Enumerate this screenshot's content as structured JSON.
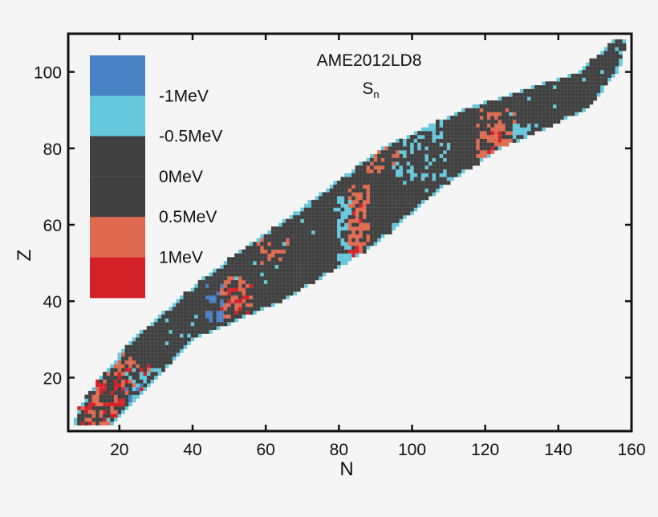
{
  "chart_data": {
    "type": "heatmap",
    "title": "AME2012LD8",
    "subtitle": {
      "main": "S",
      "sub": "n"
    },
    "xlabel": "N",
    "ylabel": "Z",
    "xlim": [
      6,
      160
    ],
    "ylim": [
      6,
      110
    ],
    "xticks": [
      20,
      40,
      60,
      80,
      100,
      120,
      140,
      160
    ],
    "yticks": [
      20,
      40,
      60,
      80,
      100
    ],
    "grid": false,
    "legend": {
      "placement": "top-left",
      "bins": [
        {
          "range": "< -1 MeV",
          "color": "#4a82c6"
        },
        {
          "range": "-1 to -0.5 MeV",
          "color": "#66c8dc"
        },
        {
          "range": "-0.5 to 0 MeV",
          "color": "#404040"
        },
        {
          "range": "0 to 0.5 MeV",
          "color": "#404040"
        },
        {
          "range": "0.5 to 1 MeV",
          "color": "#e06a50"
        },
        {
          "range": "> 1 MeV",
          "color": "#d42027"
        }
      ],
      "labels": [
        "-1MeV",
        "-0.5MeV",
        "0MeV",
        "0.5MeV",
        "1MeV"
      ]
    },
    "nuclide_boundaries": {
      "columns": [
        "Z",
        "N_min",
        "N_max"
      ],
      "rows": [
        [
          8,
          8,
          18
        ],
        [
          12,
          9,
          22
        ],
        [
          20,
          15,
          30
        ],
        [
          30,
          24,
          40
        ],
        [
          40,
          36,
          64
        ],
        [
          45,
          42,
          73
        ],
        [
          55,
          56,
          90
        ],
        [
          60,
          64,
          96
        ],
        [
          70,
          78,
          108
        ],
        [
          80,
          92,
          124
        ],
        [
          90,
          114,
          147
        ],
        [
          100,
          146,
          156
        ],
        [
          108,
          155,
          158
        ]
      ]
    },
    "deviation_regions": [
      {
        "N": [
          9,
          28
        ],
        "Z": [
          8,
          24
        ],
        "value_MeV": 1.2,
        "fraction": 0.3
      },
      {
        "N": [
          9,
          28
        ],
        "Z": [
          8,
          26
        ],
        "value_MeV": 0.7,
        "fraction": 0.3
      },
      {
        "N": [
          22,
          30
        ],
        "Z": [
          8,
          20
        ],
        "value_MeV": -1.2,
        "fraction": 0.3
      },
      {
        "N": [
          22,
          32
        ],
        "Z": [
          8,
          22
        ],
        "value_MeV": -0.7,
        "fraction": 0.3
      },
      {
        "N": [
          48,
          56
        ],
        "Z": [
          30,
          46
        ],
        "value_MeV": 0.7,
        "fraction": 0.45
      },
      {
        "N": [
          48,
          56
        ],
        "Z": [
          30,
          44
        ],
        "value_MeV": 1.2,
        "fraction": 0.25
      },
      {
        "N": [
          44,
          48
        ],
        "Z": [
          34,
          44
        ],
        "value_MeV": -1.2,
        "fraction": 0.4
      },
      {
        "N": [
          58,
          66
        ],
        "Z": [
          50,
          56
        ],
        "value_MeV": 0.7,
        "fraction": 0.3
      },
      {
        "N": [
          80,
          83
        ],
        "Z": [
          40,
          68
        ],
        "value_MeV": -0.7,
        "fraction": 0.6
      },
      {
        "N": [
          81,
          83
        ],
        "Z": [
          40,
          50
        ],
        "value_MeV": -1.2,
        "fraction": 0.3
      },
      {
        "N": [
          83,
          88
        ],
        "Z": [
          42,
          70
        ],
        "value_MeV": 0.7,
        "fraction": 0.6
      },
      {
        "N": [
          83,
          86
        ],
        "Z": [
          44,
          66
        ],
        "value_MeV": 1.2,
        "fraction": 0.15
      },
      {
        "N": [
          96,
          110
        ],
        "Z": [
          72,
          88
        ],
        "value_MeV": -0.7,
        "fraction": 0.25
      },
      {
        "N": [
          118,
          128
        ],
        "Z": [
          76,
          90
        ],
        "value_MeV": 0.7,
        "fraction": 0.5
      },
      {
        "N": [
          121,
          124
        ],
        "Z": [
          78,
          84
        ],
        "value_MeV": 1.2,
        "fraction": 0.3
      },
      {
        "N": [
          128,
          134
        ],
        "Z": [
          78,
          86
        ],
        "value_MeV": -0.7,
        "fraction": 0.5
      },
      {
        "N": [
          88,
          96
        ],
        "Z": [
          74,
          82
        ],
        "value_MeV": 0.7,
        "fraction": 0.3
      }
    ]
  }
}
